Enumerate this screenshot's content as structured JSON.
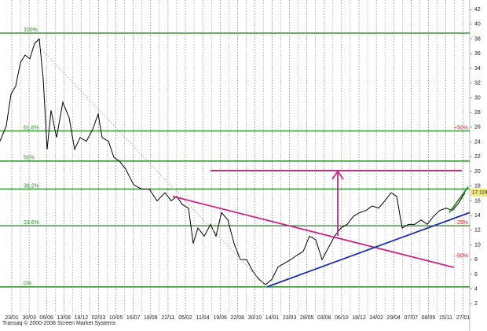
{
  "chart_data": {
    "type": "line",
    "credit": "Transaq © 2000-2008 Screen Market Systems",
    "xlim": [
      0,
      598
    ],
    "ylim": [
      -1.7,
      43.3
    ],
    "yticks": [
      2,
      4,
      6,
      8,
      10,
      12,
      14,
      16,
      18,
      20,
      22,
      24,
      26,
      28,
      30,
      32,
      34,
      36,
      38,
      40,
      42
    ],
    "xticks": [
      {
        "value": 15,
        "label": "23/01"
      },
      {
        "value": 37.1,
        "label": "30/03"
      },
      {
        "value": 59.2,
        "label": "06/06"
      },
      {
        "value": 81.3,
        "label": "13/08"
      },
      {
        "value": 103.4,
        "label": "19/12"
      },
      {
        "value": 125.5,
        "label": "02/03"
      },
      {
        "value": 147.6,
        "label": "10/05"
      },
      {
        "value": 169.7,
        "label": "16/07"
      },
      {
        "value": 191.8,
        "label": "18/09"
      },
      {
        "value": 213.9,
        "label": "22/11"
      },
      {
        "value": 236,
        "label": "05/02"
      },
      {
        "value": 258.1,
        "label": "11/04"
      },
      {
        "value": 280.2,
        "label": "19/06"
      },
      {
        "value": 302.3,
        "label": "22/08"
      },
      {
        "value": 324.4,
        "label": "30/10"
      },
      {
        "value": 346.5,
        "label": "14/01"
      },
      {
        "value": 368.6,
        "label": "23/03"
      },
      {
        "value": 390.7,
        "label": "28/05"
      },
      {
        "value": 412.8,
        "label": "03/08"
      },
      {
        "value": 434.9,
        "label": "06/10"
      },
      {
        "value": 457,
        "label": "18/12"
      },
      {
        "value": 479.1,
        "label": "24/02"
      },
      {
        "value": 501.2,
        "label": "29/04"
      },
      {
        "value": 523.3,
        "label": "07/07"
      },
      {
        "value": 545.4,
        "label": "08/09"
      },
      {
        "value": 567.5,
        "label": "15/11"
      },
      {
        "value": 589.6,
        "label": "27/01"
      }
    ],
    "grid": true,
    "series": [
      {
        "color": "#000000",
        "x": [
          0,
          8,
          14,
          20,
          26,
          32,
          38,
          44,
          50,
          55,
          60,
          65,
          72,
          80,
          88,
          95,
          102,
          110,
          118,
          125,
          130,
          138,
          145,
          152,
          160,
          170,
          180,
          190,
          200,
          210,
          218,
          225,
          232,
          240,
          246,
          252,
          260,
          268,
          275,
          282,
          290,
          298,
          306,
          314,
          322,
          330,
          338,
          346,
          354,
          362,
          370,
          378,
          386,
          394,
          402,
          410,
          418,
          426,
          434,
          442,
          450,
          458,
          466,
          474,
          482,
          490,
          498,
          505,
          512,
          520,
          528,
          536,
          544,
          552,
          560,
          568,
          576,
          584,
          592
        ],
        "values": [
          24.1,
          26.2,
          30.5,
          31.6,
          34.8,
          35.8,
          35.3,
          37.4,
          38.0,
          32.6,
          23.0,
          28.3,
          24.6,
          29.4,
          27.3,
          23.0,
          24.6,
          24.1,
          25.7,
          27.8,
          24.6,
          24.1,
          21.9,
          21.4,
          20.3,
          18.2,
          17.6,
          17.6,
          16.0,
          17.1,
          16.0,
          16.6,
          15.5,
          15.0,
          10.2,
          12.3,
          11.2,
          12.8,
          11.2,
          14.4,
          13.4,
          10.2,
          8.0,
          8.0,
          6.4,
          5.3,
          4.6,
          5.3,
          7.0,
          7.5,
          8.0,
          8.6,
          9.1,
          11.2,
          10.7,
          8.0,
          9.6,
          11.2,
          12.3,
          12.8,
          13.9,
          14.4,
          14.7,
          15.3,
          15.0,
          16.0,
          17.1,
          16.6,
          12.3,
          12.8,
          12.8,
          13.4,
          12.8,
          13.9,
          14.7,
          15.0,
          14.7,
          15.7,
          17.1
        ]
      }
    ],
    "last_price": 17.119,
    "levels": [
      {
        "value": 38.8,
        "label": "100%"
      },
      {
        "value": 25.5,
        "label": "61.8%",
        "right_label": "+50%"
      },
      {
        "value": 21.4,
        "label": "50%"
      },
      {
        "value": 17.6,
        "label": "38.2%"
      },
      {
        "value": 12.6,
        "label": "23.6%",
        "right_label": "-25%"
      },
      {
        "value": 4.3,
        "label": "0%"
      }
    ],
    "level_color": "#2e8b2e",
    "right_label_color": "#cc2222",
    "trendlines": [
      {
        "color": "#cc2288",
        "x": [
          220,
          578
        ],
        "y": [
          16.6,
          6.95
        ]
      },
      {
        "color": "#1a2fb0",
        "x": [
          340,
          598
        ],
        "y": [
          4.3,
          14.4
        ]
      },
      {
        "color": "#b0207a",
        "x": [
          268,
          588
        ],
        "y": [
          20.1,
          20.1
        ]
      },
      {
        "color": "#999999",
        "x": [
          50,
          340
        ],
        "y": [
          36.9,
          4.3
        ],
        "dashed": true
      },
      {
        "color": "#2e8b2e",
        "x": [
          572,
          596
        ],
        "y": [
          14.4,
          17.9
        ]
      }
    ],
    "arrow": {
      "color": "#cc2288",
      "x": 430,
      "y": [
        11.2,
        20.0
      ]
    },
    "extra_labels": [
      {
        "value": 8.5,
        "label": "-50%"
      }
    ]
  }
}
